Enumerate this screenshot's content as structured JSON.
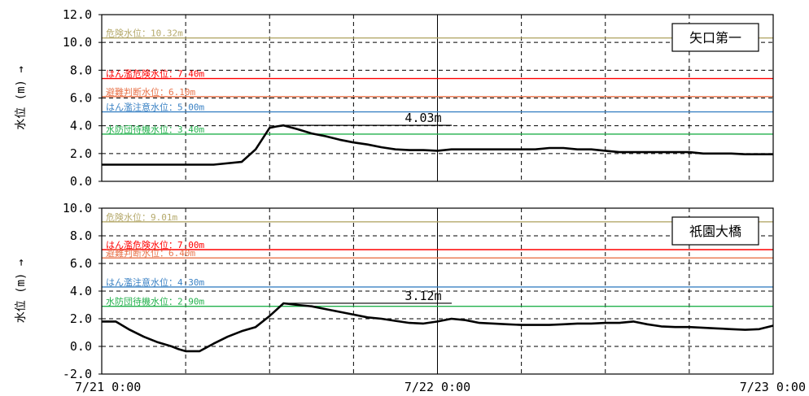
{
  "chart_data": [
    {
      "type": "line",
      "station_name": "矢口第一",
      "ylabel": "水位 (m) →",
      "ylim": [
        0,
        12
      ],
      "y_ticks": [
        "0.0",
        "2.0",
        "4.0",
        "6.0",
        "8.0",
        "10.0",
        "12.0"
      ],
      "y_tick_values": [
        0,
        2,
        4,
        6,
        8,
        10,
        12
      ],
      "xlim": [
        0,
        48
      ],
      "grid": true,
      "thresholds": [
        {
          "label": "危険水位：10.32m",
          "value": 10.32,
          "color": "#b5a96b"
        },
        {
          "label": "はん濫危険水位：7.40m",
          "value": 7.4,
          "color": "#ff0000"
        },
        {
          "label": "避難判断水位：6.10m",
          "value": 6.1,
          "color": "#e8734a"
        },
        {
          "label": "はん濫注意水位：5.00m",
          "value": 5.0,
          "color": "#3b82c4"
        },
        {
          "label": "水防団待機水位：3.40m",
          "value": 3.4,
          "color": "#22b14c"
        }
      ],
      "peak_label": "4.03m",
      "peak": {
        "x": 13,
        "y": 4.03
      },
      "series": [
        {
          "x": [
            0,
            2,
            4,
            6,
            8,
            10,
            11,
            12,
            12.5,
            13,
            14,
            15,
            16,
            17,
            18,
            19,
            20,
            21,
            22,
            23,
            24,
            25,
            26,
            27,
            28,
            29,
            30,
            31,
            32,
            33,
            34,
            35,
            36,
            37,
            38,
            39,
            40,
            41,
            42,
            43,
            44,
            45,
            46,
            47,
            48
          ],
          "values": [
            1.2,
            1.2,
            1.2,
            1.2,
            1.2,
            1.4,
            2.3,
            3.85,
            3.95,
            4.03,
            3.75,
            3.45,
            3.25,
            3.0,
            2.8,
            2.65,
            2.45,
            2.3,
            2.25,
            2.25,
            2.2,
            2.3,
            2.3,
            2.3,
            2.3,
            2.3,
            2.3,
            2.3,
            2.4,
            2.4,
            2.3,
            2.3,
            2.2,
            2.1,
            2.1,
            2.1,
            2.1,
            2.1,
            2.1,
            2.0,
            2.0,
            2.0,
            1.95,
            1.95,
            1.95
          ]
        }
      ]
    },
    {
      "type": "line",
      "station_name": "祇園大橋",
      "ylabel": "水位 (m) →",
      "ylim": [
        -2,
        10
      ],
      "y_ticks": [
        "-2.0",
        "0.0",
        "2.0",
        "4.0",
        "6.0",
        "8.0",
        "10.0"
      ],
      "y_tick_values": [
        -2,
        0,
        2,
        4,
        6,
        8,
        10
      ],
      "xlim": [
        0,
        48
      ],
      "grid": true,
      "thresholds": [
        {
          "label": "危険水位：9.01m",
          "value": 9.01,
          "color": "#b5a96b"
        },
        {
          "label": "はん濫危険水位：7.00m",
          "value": 7.0,
          "color": "#ff0000"
        },
        {
          "label": "避難判断水位：6.40m",
          "value": 6.4,
          "color": "#e8734a"
        },
        {
          "label": "はん濫注意水位：4.30m",
          "value": 4.3,
          "color": "#3b82c4"
        },
        {
          "label": "水防団待機水位：2.90m",
          "value": 2.9,
          "color": "#22b14c"
        }
      ],
      "peak_label": "3.12m",
      "peak": {
        "x": 13,
        "y": 3.12
      },
      "series": [
        {
          "x": [
            0,
            1,
            2,
            3,
            4,
            5,
            5.5,
            6,
            7,
            8,
            9,
            10,
            11,
            12,
            13,
            14,
            15,
            16,
            17,
            18,
            19,
            20,
            21,
            22,
            23,
            24,
            25,
            26,
            27,
            28,
            29,
            30,
            31,
            32,
            33,
            34,
            35,
            36,
            37,
            38,
            39,
            40,
            41,
            42,
            43,
            44,
            45,
            46,
            47,
            48
          ],
          "values": [
            1.8,
            1.8,
            1.2,
            0.7,
            0.3,
            0.0,
            -0.2,
            -0.35,
            -0.35,
            0.2,
            0.7,
            1.1,
            1.4,
            2.2,
            3.12,
            3.0,
            2.9,
            2.7,
            2.5,
            2.3,
            2.1,
            2.0,
            1.85,
            1.7,
            1.65,
            1.8,
            2.0,
            1.9,
            1.7,
            1.65,
            1.6,
            1.55,
            1.55,
            1.55,
            1.6,
            1.65,
            1.65,
            1.7,
            1.7,
            1.8,
            1.6,
            1.45,
            1.4,
            1.4,
            1.35,
            1.3,
            1.25,
            1.2,
            1.25,
            1.5
          ]
        }
      ]
    }
  ],
  "x_ticks": [
    "7/21 0:00",
    "7/22 0:00",
    "7/23 0:00"
  ],
  "x_tick_values": [
    0,
    24,
    48
  ]
}
